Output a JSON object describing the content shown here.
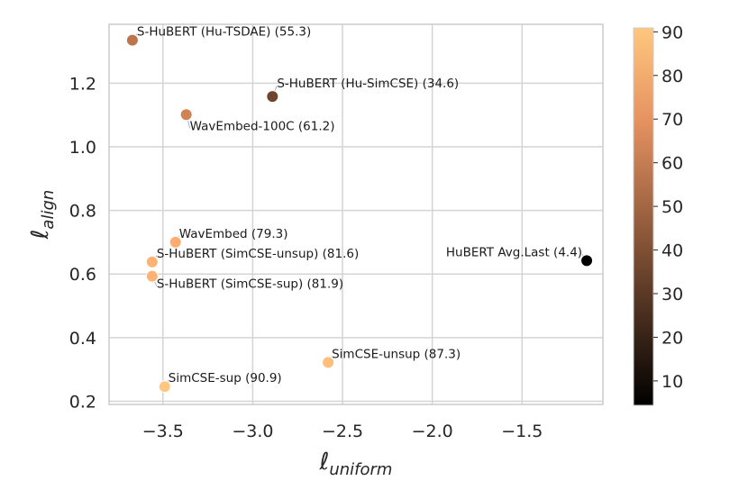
{
  "chart_data": {
    "type": "scatter",
    "title": "",
    "xlabel": {
      "symbol": "ℓ",
      "subscript": "uniform"
    },
    "ylabel": {
      "symbol": "ℓ",
      "subscript": "align"
    },
    "xlim": [
      -3.8,
      -1.05
    ],
    "ylim": [
      0.19,
      1.385
    ],
    "grid": true,
    "xticks": [
      -3.5,
      -3.0,
      -2.5,
      -2.0,
      -1.5
    ],
    "xtick_labels": [
      "−3.5",
      "−3.0",
      "−2.5",
      "−2.0",
      "−1.5"
    ],
    "yticks": [
      0.2,
      0.4,
      0.6,
      0.8,
      1.0,
      1.2
    ],
    "ytick_labels": [
      "0.2",
      "0.4",
      "0.6",
      "0.8",
      "1.0",
      "1.2"
    ],
    "colorbar": {
      "colormap": "copper",
      "range": [
        4.4,
        90.9
      ],
      "ticks": [
        10,
        20,
        30,
        40,
        50,
        60,
        70,
        80,
        90
      ],
      "tick_labels": [
        "10",
        "20",
        "30",
        "40",
        "50",
        "60",
        "70",
        "80",
        "90"
      ],
      "color_low": "#000000",
      "color_high": "#ffc77f"
    },
    "points": [
      {
        "label": "S-HuBERT (Hu-TSDAE) (55.3)",
        "x": -3.67,
        "y": 1.335,
        "value": 55.3
      },
      {
        "label": "S-HuBERT (Hu-SimCSE) (34.6)",
        "x": -2.89,
        "y": 1.158,
        "value": 34.6
      },
      {
        "label": "WavEmbed-100C (61.2)",
        "x": -3.37,
        "y": 1.101,
        "value": 61.2
      },
      {
        "label": "WavEmbed (79.3)",
        "x": -3.43,
        "y": 0.7,
        "value": 79.3
      },
      {
        "label": "S-HuBERT (SimCSE-unsup) (81.6)",
        "x": -3.56,
        "y": 0.638,
        "value": 81.6
      },
      {
        "label": "S-HuBERT (SimCSE-sup) (81.9)",
        "x": -3.56,
        "y": 0.593,
        "value": 81.9
      },
      {
        "label": "HuBERT Avg.Last (4.4)",
        "x": -1.14,
        "y": 0.642,
        "value": 4.4
      },
      {
        "label": "SimCSE-unsup (87.3)",
        "x": -2.58,
        "y": 0.322,
        "value": 87.3
      },
      {
        "label": "SimCSE-sup (90.9)",
        "x": -3.49,
        "y": 0.246,
        "value": 90.9
      }
    ]
  }
}
